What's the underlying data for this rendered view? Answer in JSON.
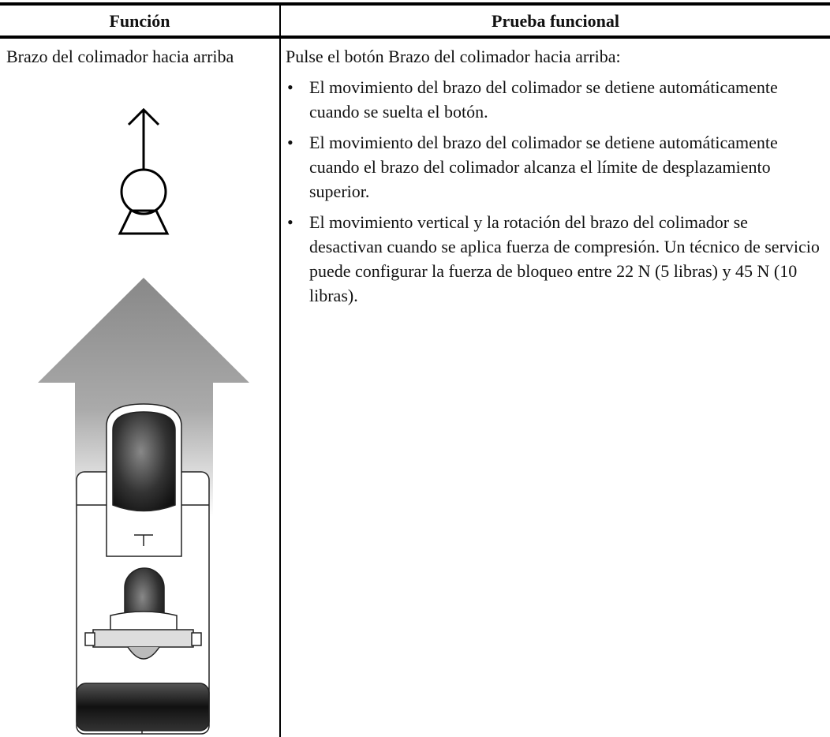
{
  "table": {
    "header": [
      "Función",
      "Prueba funcional"
    ],
    "rows": [
      {
        "function": "Brazo del colimador hacia arriba",
        "test": {
          "intro": "Pulse el botón Brazo del colimador hacia arriba:",
          "bullets": [
            "El movimiento del brazo del colimador se detiene automáticamente cuando se suelta el botón.",
            "El movimiento del brazo del colimador se detiene automáticamente cuando el brazo del colimador alcanza el límite de desplazamiento superior.",
            "El movimiento vertical y la rotación del brazo del colimador se desactivan cuando se aplica fuerza de compresión. Un técnico de servicio puede configurar la fuerza de bloqueo entre 22 N (5 libras) y 45 N (10 libras)."
          ]
        }
      }
    ]
  }
}
